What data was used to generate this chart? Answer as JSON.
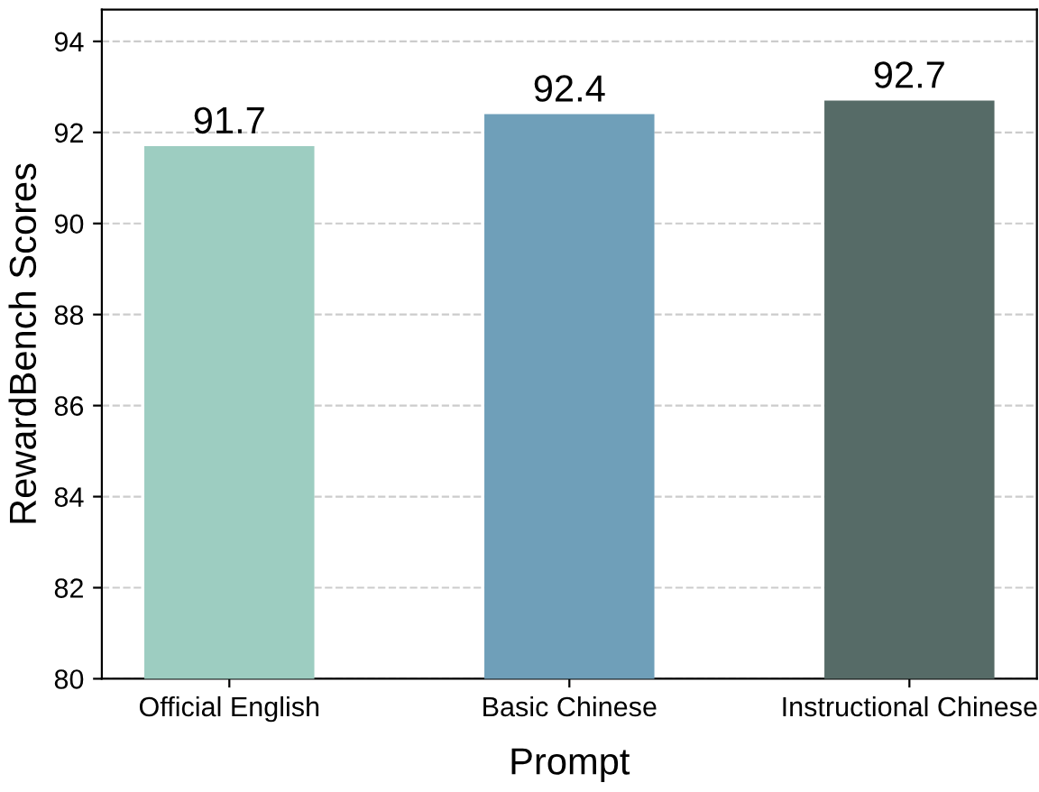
{
  "chart_data": {
    "type": "bar",
    "xlabel": "Prompt",
    "ylabel": "RewardBench Scores",
    "categories": [
      "Official English",
      "Basic Chinese",
      "Instructional Chinese"
    ],
    "values": [
      91.7,
      92.4,
      92.7
    ],
    "colors": [
      "#9dcdc1",
      "#6f9fb9",
      "#566b67"
    ],
    "ylim": [
      80,
      94.7
    ],
    "yticks": [
      80,
      82,
      84,
      86,
      88,
      90,
      92,
      94
    ],
    "grid": "y",
    "data_labels": true
  }
}
